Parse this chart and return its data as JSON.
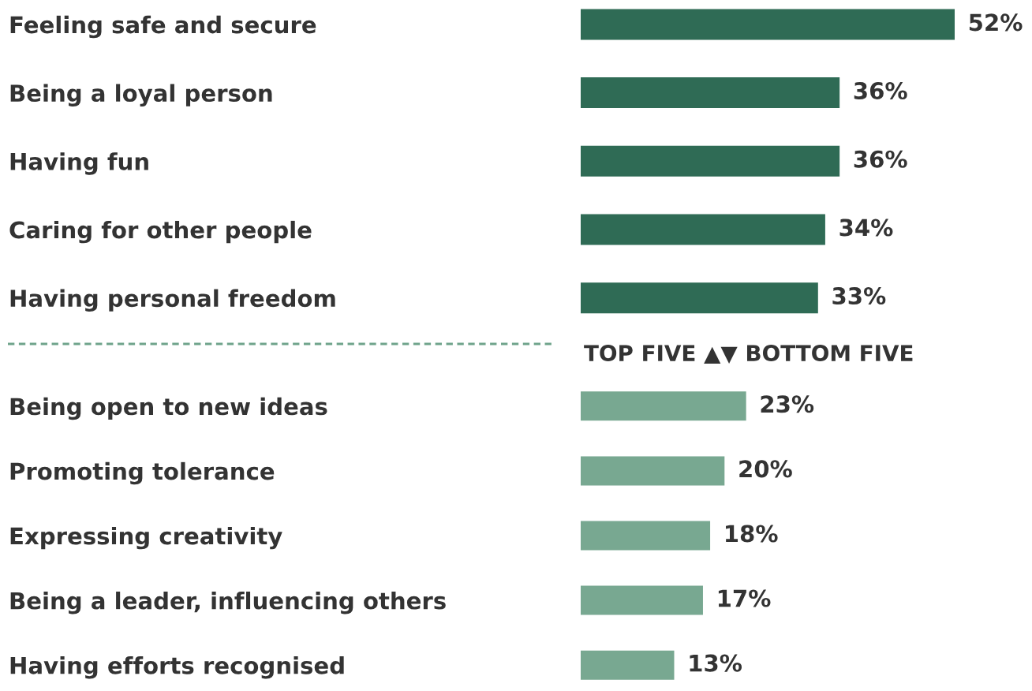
{
  "chart_data": [
    {
      "type": "bar",
      "orientation": "horizontal",
      "tick_labels": "y",
      "categories": [
        "Feeling safe and secure",
        "Being a loyal person",
        "Having fun",
        "Caring for other people",
        "Having personal freedom"
      ],
      "values": [
        52,
        36,
        36,
        34,
        33
      ],
      "value_labels": [
        "52%",
        "36%",
        "36%",
        "34%",
        "33%"
      ],
      "color": "#2f6b55"
    },
    {
      "type": "bar",
      "orientation": "horizontal",
      "tick_labels": "y",
      "categories": [
        "Being open to new ideas",
        "Promoting tolerance",
        "Expressing creativity",
        "Being a leader, influencing others",
        "Having efforts recognised"
      ],
      "values": [
        23,
        20,
        18,
        17,
        13
      ],
      "value_labels": [
        "23%",
        "20%",
        "18%",
        "17%",
        "13%"
      ],
      "color": "#78a891",
      "annotations": [
        "TOP FIVE ▲▼ BOTTOM FIVE"
      ]
    }
  ]
}
